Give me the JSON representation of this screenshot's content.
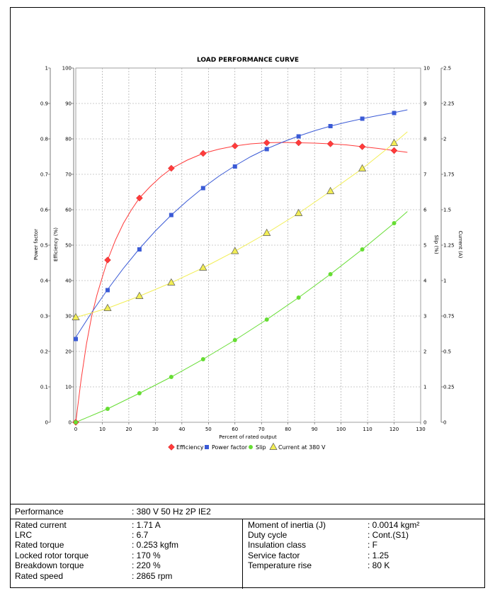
{
  "chart_data": {
    "type": "line",
    "title": "LOAD PERFORMANCE CURVE",
    "xlabel": "Percent of rated output",
    "xlim": [
      0,
      130
    ],
    "x_ticks": [
      "0",
      "10",
      "20",
      "30",
      "40",
      "50",
      "60",
      "70",
      "80",
      "90",
      "100",
      "110",
      "120",
      "130"
    ],
    "y_axes": [
      {
        "label": "Power factor",
        "ylim": [
          0,
          1
        ],
        "ticks": [
          "0",
          "0.1",
          "0.2",
          "0.3",
          "0.4",
          "0.5",
          "0.6",
          "0.7",
          "0.8",
          "0.9",
          "1"
        ]
      },
      {
        "label": "Efficiency (%)",
        "ylim": [
          0,
          100
        ],
        "ticks": [
          "0",
          "10",
          "20",
          "30",
          "40",
          "50",
          "60",
          "70",
          "80",
          "90",
          "100"
        ]
      },
      {
        "label": "Slip (%)",
        "ylim": [
          0,
          10
        ],
        "ticks": [
          "0",
          "1",
          "2",
          "3",
          "4",
          "5",
          "6",
          "7",
          "8",
          "9",
          "10"
        ]
      },
      {
        "label": "Current (A)",
        "ylim": [
          0,
          2.5
        ],
        "ticks": [
          "0",
          "0.25",
          "0.5",
          "0.75",
          "1",
          "1.25",
          "1.5",
          "1.75",
          "2",
          "2.25",
          "2.5"
        ]
      }
    ],
    "grid": true,
    "legend_position": "bottom",
    "series": [
      {
        "name": "Efficiency",
        "axis": "Efficiency (%)",
        "color": "#ff3b3b",
        "marker": "diamond",
        "x": [
          0,
          12,
          24,
          36,
          48,
          60,
          72,
          84,
          96,
          108,
          120
        ],
        "values": [
          0,
          45.8,
          63.3,
          71.7,
          75.9,
          78.0,
          78.9,
          78.9,
          78.6,
          77.8,
          76.7
        ],
        "curve": {
          "x": [
            0,
            2,
            4,
            6,
            8,
            10,
            12,
            15,
            18,
            21,
            24,
            28,
            32,
            36,
            42,
            48,
            54,
            60,
            66,
            72,
            78,
            84,
            90,
            96,
            102,
            108,
            114,
            120,
            125
          ],
          "y": [
            0,
            12,
            22,
            30,
            36,
            41,
            45.8,
            51.5,
            56.2,
            60,
            63.3,
            66.5,
            69.3,
            71.6,
            74,
            75.9,
            77.1,
            78,
            78.6,
            78.9,
            79,
            78.9,
            78.8,
            78.6,
            78.3,
            77.8,
            77.3,
            76.7,
            76.2
          ]
        }
      },
      {
        "name": "Power factor",
        "axis": "Power factor",
        "color": "#3b5bd6",
        "marker": "square",
        "x": [
          0,
          12,
          24,
          36,
          48,
          60,
          72,
          84,
          96,
          108,
          120
        ],
        "values": [
          0.235,
          0.373,
          0.488,
          0.585,
          0.661,
          0.722,
          0.771,
          0.807,
          0.836,
          0.857,
          0.873
        ],
        "curve": {
          "x": [
            0,
            6,
            12,
            18,
            24,
            30,
            36,
            42,
            48,
            54,
            60,
            66,
            72,
            78,
            84,
            90,
            96,
            102,
            108,
            114,
            120,
            125
          ],
          "y": [
            0.24,
            0.31,
            0.375,
            0.435,
            0.49,
            0.54,
            0.585,
            0.625,
            0.662,
            0.695,
            0.724,
            0.75,
            0.772,
            0.791,
            0.808,
            0.823,
            0.836,
            0.847,
            0.857,
            0.866,
            0.874,
            0.882
          ]
        }
      },
      {
        "name": "Slip",
        "axis": "Slip (%)",
        "color": "#66dd33",
        "marker": "circle",
        "x": [
          0,
          12,
          24,
          36,
          48,
          60,
          72,
          84,
          96,
          108,
          120
        ],
        "values": [
          0,
          0.38,
          0.82,
          1.28,
          1.78,
          2.32,
          2.9,
          3.52,
          4.18,
          4.88,
          5.62
        ],
        "curve": {
          "x": [
            0,
            12,
            24,
            36,
            48,
            60,
            72,
            84,
            96,
            108,
            120,
            125
          ],
          "y": [
            0,
            0.38,
            0.82,
            1.28,
            1.78,
            2.32,
            2.9,
            3.52,
            4.18,
            4.88,
            5.62,
            5.95
          ]
        }
      },
      {
        "name": "Current at 380 V",
        "axis": "Current (A)",
        "color": "#f2ee55",
        "marker": "triangle",
        "x": [
          0,
          12,
          24,
          36,
          48,
          60,
          72,
          84,
          96,
          108,
          120
        ],
        "values": [
          0.74,
          0.805,
          0.89,
          0.985,
          1.09,
          1.207,
          1.335,
          1.475,
          1.63,
          1.79,
          1.97
        ],
        "curve": {
          "x": [
            0,
            12,
            24,
            36,
            48,
            60,
            72,
            84,
            96,
            108,
            120,
            125
          ],
          "y": [
            0.74,
            0.805,
            0.89,
            0.985,
            1.09,
            1.207,
            1.335,
            1.475,
            1.63,
            1.79,
            1.97,
            2.05
          ]
        }
      }
    ]
  },
  "specs": {
    "performance_label": "Performance",
    "performance_value": ": 380 V 50 Hz 2P IE2",
    "left": [
      {
        "label": "Rated current",
        "value": ": 1.71 A"
      },
      {
        "label": "LRC",
        "value": ": 6.7"
      },
      {
        "label": "Rated torque",
        "value": ": 0.253 kgfm"
      },
      {
        "label": "Locked rotor torque",
        "value": ": 170 %"
      },
      {
        "label": "Breakdown torque",
        "value": ": 220 %"
      },
      {
        "label": "Rated speed",
        "value": ": 2865 rpm"
      }
    ],
    "right": [
      {
        "label": "Moment of inertia (J)",
        "value": ": 0.0014 kgm²"
      },
      {
        "label": "Duty cycle",
        "value": ": Cont.(S1)"
      },
      {
        "label": "Insulation class",
        "value": ": F"
      },
      {
        "label": "Service factor",
        "value": ": 1.25"
      },
      {
        "label": "Temperature rise",
        "value": ": 80 K"
      }
    ]
  }
}
